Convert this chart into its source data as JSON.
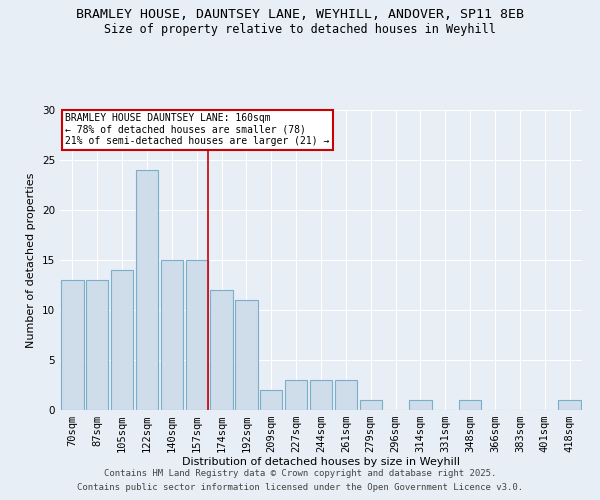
{
  "title1": "BRAMLEY HOUSE, DAUNTSEY LANE, WEYHILL, ANDOVER, SP11 8EB",
  "title2": "Size of property relative to detached houses in Weyhill",
  "xlabel": "Distribution of detached houses by size in Weyhill",
  "ylabel": "Number of detached properties",
  "categories": [
    "70sqm",
    "87sqm",
    "105sqm",
    "122sqm",
    "140sqm",
    "157sqm",
    "174sqm",
    "192sqm",
    "209sqm",
    "227sqm",
    "244sqm",
    "261sqm",
    "279sqm",
    "296sqm",
    "314sqm",
    "331sqm",
    "348sqm",
    "366sqm",
    "383sqm",
    "401sqm",
    "418sqm"
  ],
  "values": [
    13,
    13,
    14,
    24,
    15,
    15,
    12,
    11,
    2,
    3,
    3,
    3,
    1,
    0,
    1,
    0,
    1,
    0,
    0,
    0,
    1
  ],
  "bar_color": "#cfdce9",
  "bar_edge_color": "#7aafc9",
  "red_line_index": 5,
  "ylim": [
    0,
    30
  ],
  "yticks": [
    0,
    5,
    10,
    15,
    20,
    25,
    30
  ],
  "annotation_title": "BRAMLEY HOUSE DAUNTSEY LANE: 160sqm",
  "annotation_line1": "← 78% of detached houses are smaller (78)",
  "annotation_line2": "21% of semi-detached houses are larger (21) →",
  "annotation_box_color": "#ffffff",
  "annotation_box_edge": "#cc0000",
  "footer1": "Contains HM Land Registry data © Crown copyright and database right 2025.",
  "footer2": "Contains public sector information licensed under the Open Government Licence v3.0.",
  "background_color": "#e8eef5",
  "grid_color": "#ffffff",
  "title_fontsize": 9.5,
  "subtitle_fontsize": 8.5,
  "axis_label_fontsize": 8,
  "tick_fontsize": 7.5,
  "footer_fontsize": 6.5
}
